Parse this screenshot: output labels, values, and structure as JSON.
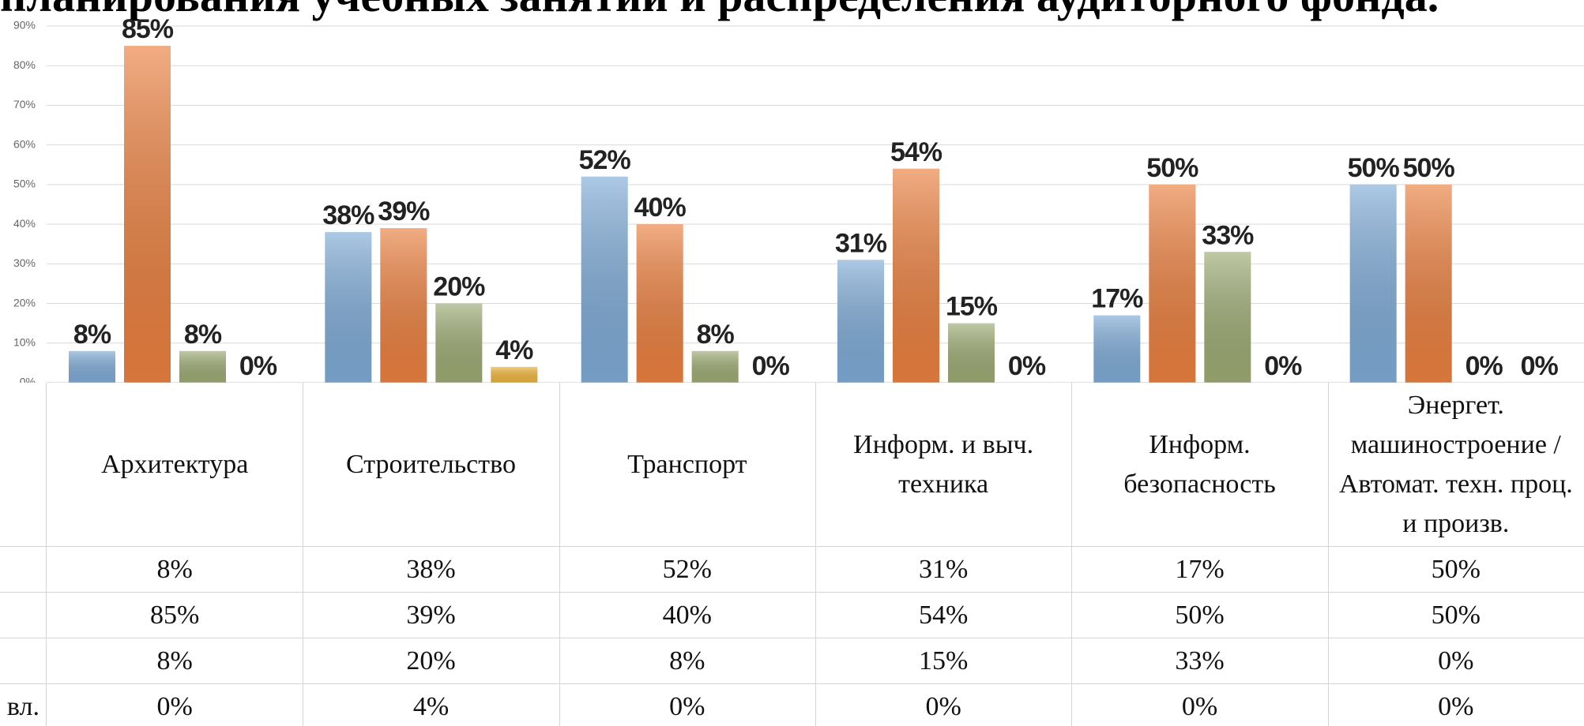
{
  "chart_data": {
    "type": "bar",
    "title": "планирования учебных занятий и распределения аудиторного фонда.",
    "categories": [
      "Архитектура",
      "Строительство",
      "Транспорт",
      "Информ. и выч. техника",
      "Информ. безопасность",
      "Энергет. машиностроение /Автомат. техн. проц. и произв."
    ],
    "series": [
      {
        "color": "#7fabd6",
        "values": [
          8,
          38,
          52,
          31,
          17,
          50
        ],
        "value_labels": [
          "8%",
          "38%",
          "52%",
          "31%",
          "17%",
          "50%"
        ]
      },
      {
        "color": "#ea8040",
        "values": [
          85,
          39,
          40,
          54,
          50,
          50
        ],
        "value_labels": [
          "85%",
          "39%",
          "40%",
          "54%",
          "50%",
          "50%"
        ]
      },
      {
        "color": "#9dab74",
        "values": [
          8,
          20,
          8,
          15,
          33,
          0
        ],
        "value_labels": [
          "8%",
          "20%",
          "8%",
          "15%",
          "33%",
          "0%"
        ]
      },
      {
        "name": "вл.",
        "color": "#eeb43a",
        "values": [
          0,
          4,
          0,
          0,
          0,
          0
        ],
        "value_labels": [
          "0%",
          "4%",
          "0%",
          "0%",
          "0%",
          "0%"
        ]
      }
    ],
    "ylim": [
      0,
      90
    ],
    "yticks": [
      {
        "value": 0,
        "label": "0%"
      },
      {
        "value": 10,
        "label": "10%"
      },
      {
        "value": 20,
        "label": "20%"
      },
      {
        "value": 30,
        "label": "30%"
      },
      {
        "value": 40,
        "label": "40%"
      },
      {
        "value": 50,
        "label": "50%"
      },
      {
        "value": 60,
        "label": "60%"
      },
      {
        "value": 70,
        "label": "70%"
      },
      {
        "value": 80,
        "label": "80%"
      },
      {
        "value": 90,
        "label": "90%"
      }
    ],
    "grid": true
  }
}
